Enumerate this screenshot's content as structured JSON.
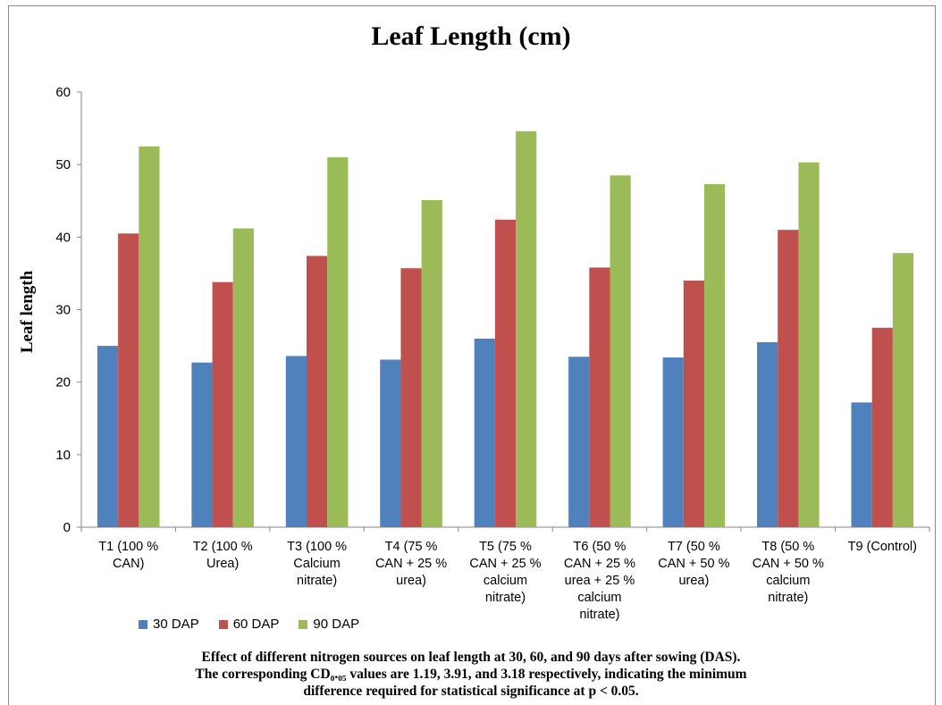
{
  "chart_data": {
    "type": "bar",
    "title": "Leaf Length (cm)",
    "ylabel": "Leaf length",
    "xlabel": "",
    "ylim": [
      0,
      60
    ],
    "yticks": [
      0,
      10,
      20,
      30,
      40,
      50,
      60
    ],
    "grid": false,
    "legend_position": "bottom-left",
    "categories": [
      "T1 (100 % CAN)",
      "T2 (100 % Urea)",
      "T3 (100 % Calcium nitrate)",
      "T4 (75 % CAN + 25 % urea)",
      "T5 (75 % CAN + 25 % calcium nitrate)",
      "T6 (50 % CAN + 25 % urea + 25 % calcium nitrate)",
      "T7 (50 % CAN + 50 % urea)",
      "T8 (50 % CAN + 50 % calcium nitrate)",
      "T9 (Control)"
    ],
    "category_label_lines": [
      [
        "T1 (100 %",
        "CAN)"
      ],
      [
        "T2 (100 %",
        "Urea)"
      ],
      [
        "T3 (100 %",
        "Calcium",
        "nitrate)"
      ],
      [
        "T4 (75 %",
        "CAN + 25 %",
        "urea)"
      ],
      [
        "T5 (75 %",
        "CAN + 25 %",
        "calcium",
        "nitrate)"
      ],
      [
        "T6 (50 %",
        "CAN + 25 %",
        "urea + 25 %",
        "calcium",
        "nitrate)"
      ],
      [
        "T7 (50 %",
        "CAN + 50 %",
        "urea)"
      ],
      [
        "T8 (50 %",
        "CAN + 50 %",
        "calcium",
        "nitrate)"
      ],
      [
        "T9 (Control)"
      ]
    ],
    "series": [
      {
        "name": "30 DAP",
        "color": "#4f81bd",
        "values": [
          25.0,
          22.7,
          23.6,
          23.1,
          26.0,
          23.5,
          23.4,
          25.5,
          17.2
        ]
      },
      {
        "name": "60 DAP",
        "color": "#c0504d",
        "values": [
          40.5,
          33.8,
          37.4,
          35.7,
          42.4,
          35.8,
          34.0,
          41.0,
          27.5
        ]
      },
      {
        "name": "90 DAP",
        "color": "#9bbb59",
        "values": [
          52.5,
          41.2,
          51.0,
          45.1,
          54.6,
          48.5,
          47.3,
          50.3,
          37.8
        ]
      }
    ]
  },
  "caption_lines": [
    "Effect of different nitrogen sources on leaf length at 30, 60, and 90 days after sowing (DAS).",
    "The corresponding CD₀.₀₅ values are 1.19, 3.91, and 3.18 respectively, indicating the minimum",
    "difference required  for statistical significance at p < 0.05."
  ]
}
